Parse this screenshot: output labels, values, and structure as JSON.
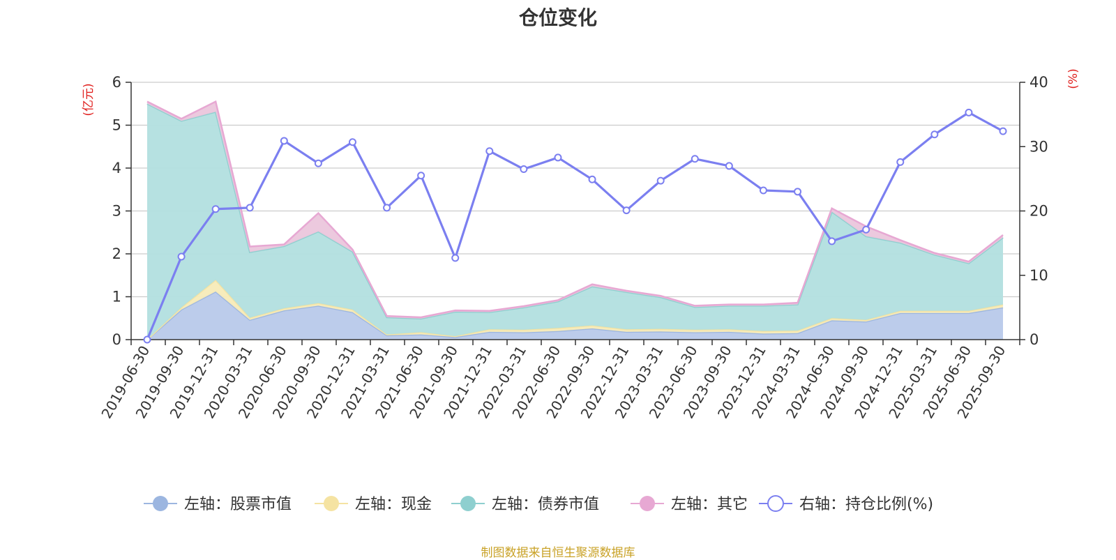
{
  "chart_data": {
    "type": "area",
    "title": "仓位变化",
    "source_note": "制图数据来自恒生聚源数据库",
    "categories": [
      "2019-06-30",
      "2019-09-30",
      "2019-12-31",
      "2020-03-31",
      "2020-06-30",
      "2020-09-30",
      "2020-12-31",
      "2021-03-31",
      "2021-06-30",
      "2021-09-30",
      "2021-12-31",
      "2022-03-31",
      "2022-06-30",
      "2022-09-30",
      "2022-12-31",
      "2023-03-31",
      "2023-06-30",
      "2023-09-30",
      "2023-12-31",
      "2024-03-31",
      "2024-06-30",
      "2024-09-30",
      "2024-12-31",
      "2025-03-31",
      "2025-06-30",
      "2025-09-30"
    ],
    "left_axis": {
      "unit": "(亿元)",
      "ylim": [
        0,
        6
      ],
      "ticks": [
        "0",
        "1",
        "2",
        "3",
        "4",
        "5",
        "6"
      ]
    },
    "right_axis": {
      "unit": "(%)",
      "ylim": [
        0,
        40
      ],
      "ticks": [
        "0",
        "10",
        "20",
        "30",
        "40"
      ]
    },
    "series": [
      {
        "name": "左轴：股票市值",
        "axis": "left",
        "kind": "stacked-area",
        "color": "#9cb6e0",
        "fill": "#b8c9ea",
        "values": [
          0.0,
          0.7,
          1.12,
          0.46,
          0.68,
          0.79,
          0.64,
          0.1,
          0.12,
          0.06,
          0.18,
          0.17,
          0.2,
          0.26,
          0.18,
          0.19,
          0.17,
          0.18,
          0.14,
          0.15,
          0.45,
          0.42,
          0.62,
          0.62,
          0.62,
          0.75
        ]
      },
      {
        "name": "左轴：现金",
        "axis": "left",
        "kind": "stacked-area",
        "color": "#f5e3a2",
        "fill": "#f7ebb8",
        "values": [
          0.0,
          0.05,
          0.27,
          0.05,
          0.05,
          0.06,
          0.06,
          0.02,
          0.05,
          0.02,
          0.06,
          0.06,
          0.07,
          0.07,
          0.06,
          0.06,
          0.06,
          0.06,
          0.06,
          0.06,
          0.05,
          0.04,
          0.05,
          0.05,
          0.05,
          0.07
        ]
      },
      {
        "name": "左轴：债券市值",
        "axis": "left",
        "kind": "stacked-area",
        "color": "#8ecfcf",
        "fill": "#b2dfdf",
        "values": [
          5.5,
          4.35,
          3.92,
          1.53,
          1.45,
          1.67,
          1.35,
          0.4,
          0.32,
          0.57,
          0.4,
          0.52,
          0.62,
          0.91,
          0.87,
          0.74,
          0.53,
          0.55,
          0.59,
          0.61,
          2.48,
          1.95,
          1.59,
          1.31,
          1.11,
          1.56
        ]
      },
      {
        "name": "左轴：其它",
        "axis": "left",
        "kind": "stacked-area",
        "color": "#e7a8d3",
        "fill": "#ebc6dc",
        "values": [
          0.05,
          0.05,
          0.24,
          0.13,
          0.04,
          0.43,
          0.05,
          0.03,
          0.03,
          0.03,
          0.03,
          0.03,
          0.03,
          0.05,
          0.03,
          0.03,
          0.03,
          0.03,
          0.03,
          0.04,
          0.08,
          0.23,
          0.06,
          0.04,
          0.04,
          0.06
        ]
      },
      {
        "name": "右轴：持仓比例(%)",
        "axis": "right",
        "kind": "line",
        "color": "#7b7ff0",
        "values": [
          0.0,
          12.9,
          20.3,
          20.5,
          30.9,
          27.4,
          30.7,
          20.5,
          25.5,
          12.7,
          29.3,
          26.5,
          28.3,
          24.9,
          20.1,
          24.7,
          28.1,
          27.0,
          23.2,
          23.0,
          15.3,
          17.1,
          27.6,
          31.9,
          35.3,
          32.4
        ]
      }
    ]
  }
}
